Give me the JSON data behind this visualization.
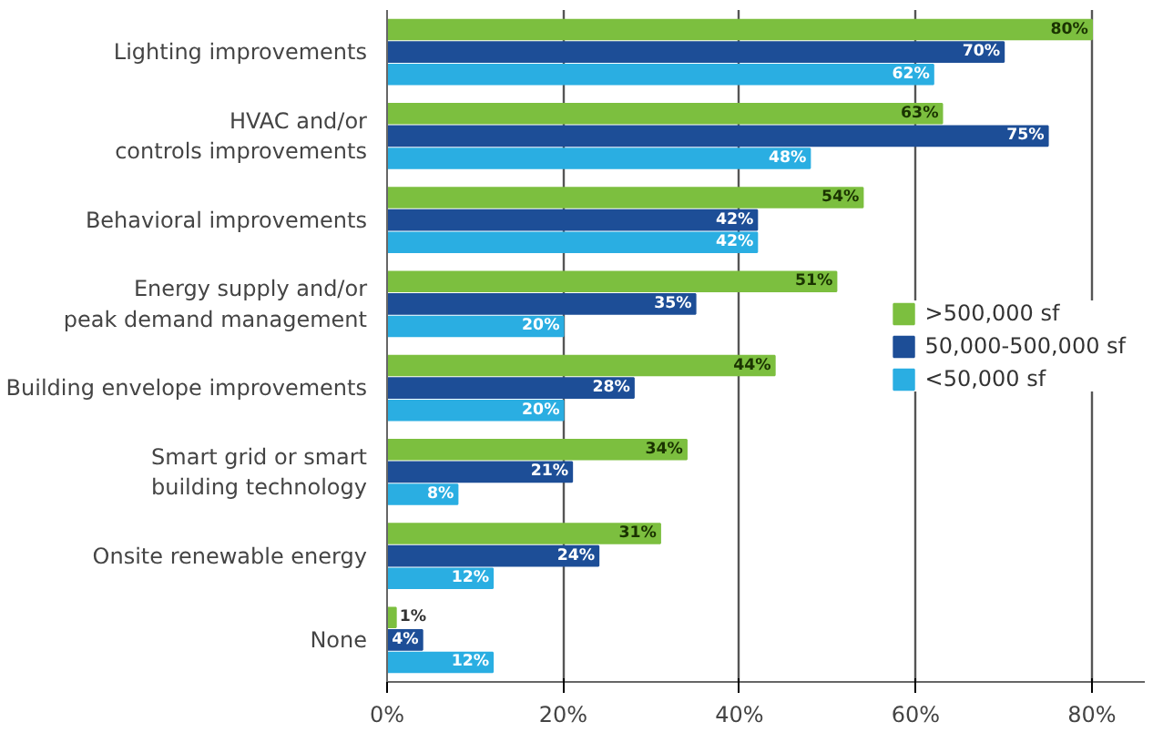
{
  "chart_data": {
    "type": "bar",
    "orientation": "horizontal",
    "categories": [
      "Lighting improvements",
      "HVAC and/or\ncontrols improvements",
      "Behavioral improvements",
      "Energy supply and/or\npeak demand management",
      "Building envelope improvements",
      "Smart grid or smart\nbuilding technology",
      "Onsite renewable energy",
      "None"
    ],
    "series": [
      {
        "name": ">500,000 sf",
        "color": "#7cbf3f",
        "values": [
          80,
          63,
          54,
          51,
          44,
          34,
          31,
          1
        ],
        "value_labels": [
          "80%",
          "63%",
          "54%",
          "51%",
          "44%",
          "34%",
          "31%",
          "1%"
        ]
      },
      {
        "name": "50,000-500,000 sf",
        "color": "#1d4e97",
        "values": [
          70,
          75,
          42,
          35,
          28,
          21,
          24,
          4
        ],
        "value_labels": [
          "70%",
          "75%",
          "42%",
          "35%",
          "28%",
          "21%",
          "24%",
          "4%"
        ]
      },
      {
        "name": "<50,000 sf",
        "color": "#2aaee2",
        "values": [
          62,
          48,
          42,
          20,
          20,
          8,
          12,
          12
        ],
        "value_labels": [
          "62%",
          "48%",
          "42%",
          "20%",
          "20%",
          "8%",
          "12%",
          "12%"
        ]
      }
    ],
    "xlim": [
      0,
      86
    ],
    "xticks": [
      {
        "value": 0,
        "label": "0%"
      },
      {
        "value": 20,
        "label": "20%"
      },
      {
        "value": 40,
        "label": "40%"
      },
      {
        "value": 60,
        "label": "60%"
      },
      {
        "value": 80,
        "label": "80%"
      }
    ],
    "grid": "x",
    "legend": "right"
  }
}
